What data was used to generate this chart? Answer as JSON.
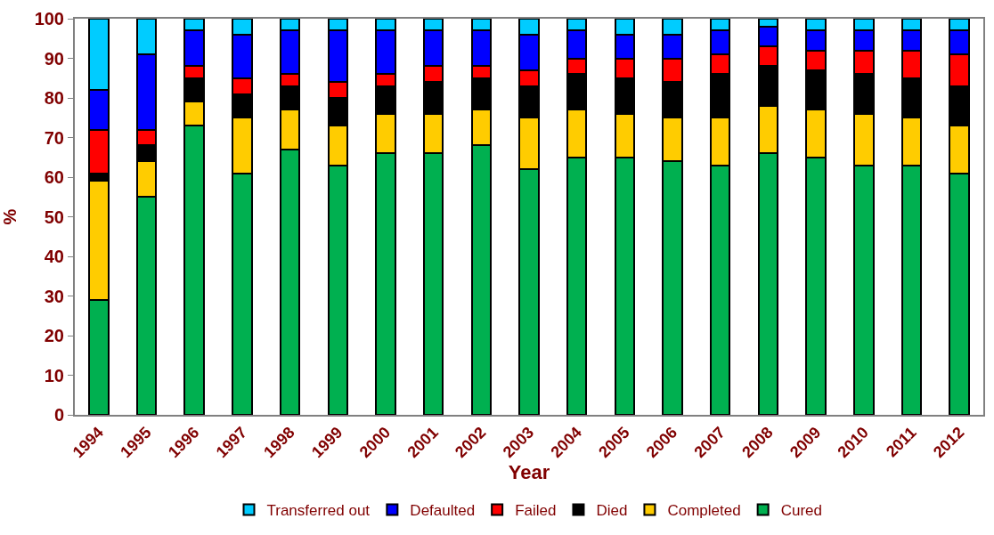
{
  "chart_data": {
    "type": "bar",
    "stacked": true,
    "xlabel": "Year",
    "ylabel": "%",
    "categories": [
      "1994",
      "1995",
      "1996",
      "1997",
      "1998",
      "1999",
      "2000",
      "2001",
      "2002",
      "2003",
      "2004",
      "2005",
      "2006",
      "2007",
      "2008",
      "2009",
      "2010",
      "2011",
      "2012"
    ],
    "series": [
      {
        "name": "Cured",
        "color": "#00b050",
        "values": [
          29,
          55,
          73,
          61,
          67,
          63,
          66,
          66,
          68,
          62,
          65,
          65,
          64,
          63,
          66,
          65,
          63,
          63,
          61
        ]
      },
      {
        "name": "Completed",
        "color": "#ffcc00",
        "values": [
          30,
          9,
          6,
          14,
          10,
          10,
          10,
          10,
          9,
          13,
          12,
          11,
          11,
          12,
          12,
          12,
          13,
          12,
          12
        ]
      },
      {
        "name": "Died",
        "color": "#000000",
        "values": [
          2,
          4,
          6,
          6,
          6,
          7,
          7,
          8,
          8,
          8,
          9,
          9,
          9,
          11,
          10,
          10,
          10,
          10,
          10
        ]
      },
      {
        "name": "Failed",
        "color": "#ff0000",
        "values": [
          11,
          4,
          3,
          4,
          3,
          4,
          3,
          4,
          3,
          4,
          4,
          5,
          6,
          5,
          5,
          5,
          6,
          7,
          8
        ]
      },
      {
        "name": "Defaulted",
        "color": "#0000ff",
        "values": [
          10,
          19,
          9,
          11,
          11,
          13,
          11,
          9,
          9,
          9,
          7,
          6,
          6,
          6,
          5,
          5,
          5,
          5,
          6
        ]
      },
      {
        "name": "Transferred out",
        "color": "#00ccff",
        "values": [
          18,
          9,
          3,
          4,
          3,
          3,
          3,
          3,
          3,
          4,
          3,
          4,
          4,
          3,
          2,
          3,
          3,
          3,
          3
        ]
      }
    ],
    "ylim": [
      0,
      100
    ],
    "yticks": [
      0,
      10,
      20,
      30,
      40,
      50,
      60,
      70,
      80,
      90,
      100
    ],
    "legend": "bottom"
  }
}
